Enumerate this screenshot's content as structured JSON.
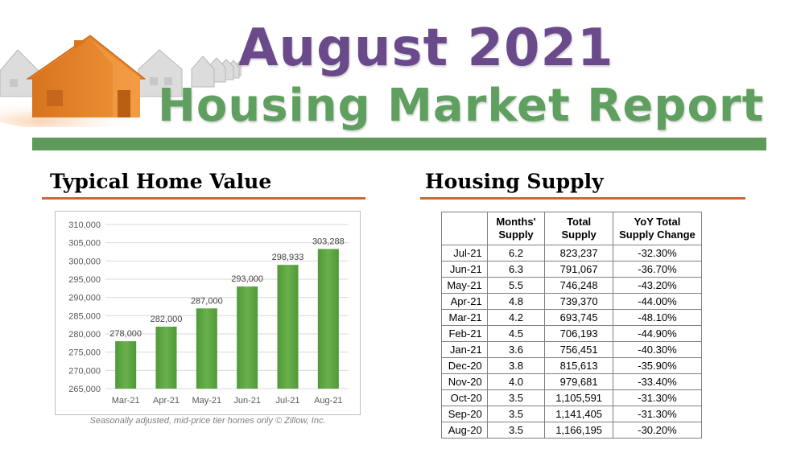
{
  "banner": {
    "title_line1": "August 2021",
    "title_line2": "Housing Market Report",
    "colors": {
      "line1": "#6b4a8c",
      "line2": "#5f9f5f",
      "bar": "#5e9a5a"
    },
    "icon": "houses-row-illustration"
  },
  "home_value": {
    "section_title": "Typical Home Value",
    "footnote": "Seasonally adjusted, mid-price tier homes only  © Zillow, Inc.",
    "rule_color": "#c76a32"
  },
  "chart_data": {
    "type": "bar",
    "categories": [
      "Mar-21",
      "Apr-21",
      "May-21",
      "Jun-21",
      "Jul-21",
      "Aug-21"
    ],
    "values": [
      278000,
      282000,
      287000,
      293000,
      298933,
      303288
    ],
    "data_labels": [
      "278,000",
      "282,000",
      "287,000",
      "293,000",
      "298,933",
      "303,288"
    ],
    "ylim": [
      265000,
      310000
    ],
    "yticks": [
      265000,
      270000,
      275000,
      280000,
      285000,
      290000,
      295000,
      300000,
      305000,
      310000
    ],
    "ytick_labels": [
      "265,000",
      "270,000",
      "275,000",
      "280,000",
      "285,000",
      "290,000",
      "295,000",
      "300,000",
      "305,000",
      "310,000"
    ],
    "grid": true,
    "legend": "none",
    "bar_color": "#6ab04c",
    "title": "",
    "xlabel": "",
    "ylabel": ""
  },
  "housing_supply": {
    "section_title": "Housing Supply",
    "rule_color": "#c76a32",
    "headers": {
      "month": "",
      "months_supply_line1": "Months'",
      "months_supply_line2": "Supply",
      "total_supply_line1": "Total",
      "total_supply_line2": "Supply",
      "yoy_line1": "YoY Total",
      "yoy_line2": "Supply Change"
    },
    "rows": [
      {
        "month": "Jul-21",
        "months_supply": "6.2",
        "total_supply": "823,237",
        "yoy": "-32.30%"
      },
      {
        "month": "Jun-21",
        "months_supply": "6.3",
        "total_supply": "791,067",
        "yoy": "-36.70%"
      },
      {
        "month": "May-21",
        "months_supply": "5.5",
        "total_supply": "746,248",
        "yoy": "-43.20%"
      },
      {
        "month": "Apr-21",
        "months_supply": "4.8",
        "total_supply": "739,370",
        "yoy": "-44.00%"
      },
      {
        "month": "Mar-21",
        "months_supply": "4.2",
        "total_supply": "693,745",
        "yoy": "-48.10%"
      },
      {
        "month": "Feb-21",
        "months_supply": "4.5",
        "total_supply": "706,193",
        "yoy": "-44.90%"
      },
      {
        "month": "Jan-21",
        "months_supply": "3.6",
        "total_supply": "756,451",
        "yoy": "-40.30%"
      },
      {
        "month": "Dec-20",
        "months_supply": "3.8",
        "total_supply": "815,613",
        "yoy": "-35.90%"
      },
      {
        "month": "Nov-20",
        "months_supply": "4.0",
        "total_supply": "979,681",
        "yoy": "-33.40%"
      },
      {
        "month": "Oct-20",
        "months_supply": "3.5",
        "total_supply": "1,105,591",
        "yoy": "-31.30%"
      },
      {
        "month": "Sep-20",
        "months_supply": "3.5",
        "total_supply": "1,141,405",
        "yoy": "-31.30%"
      },
      {
        "month": "Aug-20",
        "months_supply": "3.5",
        "total_supply": "1,166,195",
        "yoy": "-30.20%"
      }
    ]
  }
}
